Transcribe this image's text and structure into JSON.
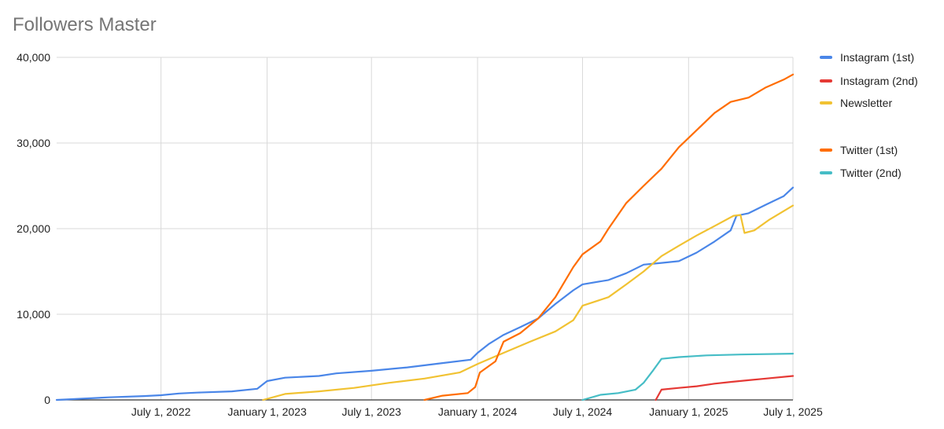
{
  "chart_data": {
    "type": "line",
    "title": "Followers Master",
    "xlabel": "",
    "ylabel": "",
    "x_range": [
      "2022-01-01",
      "2025-07-01"
    ],
    "ylim": [
      0,
      40000
    ],
    "y_ticks": [
      0,
      10000,
      20000,
      30000,
      40000
    ],
    "y_tick_labels": [
      "0",
      "10,000",
      "20,000",
      "30,000",
      "40,000"
    ],
    "x_ticks": [
      "2022-07-01",
      "2023-01-01",
      "2023-07-01",
      "2024-01-01",
      "2024-07-01",
      "2025-01-01",
      "2025-07-01"
    ],
    "x_tick_labels": [
      "July 1, 2022",
      "January 1, 2023",
      "July 1, 2023",
      "January 1, 2024",
      "July 1, 2024",
      "January 1, 2025",
      "July 1, 2025"
    ],
    "grid": true,
    "legend_position": "right",
    "series": [
      {
        "name": "Instagram (1st)",
        "color": "#4a86e8",
        "points": [
          [
            "2022-01-01",
            0
          ],
          [
            "2022-02-15",
            150
          ],
          [
            "2022-04-01",
            300
          ],
          [
            "2022-06-01",
            450
          ],
          [
            "2022-07-01",
            550
          ],
          [
            "2022-08-01",
            750
          ],
          [
            "2022-09-01",
            850
          ],
          [
            "2022-11-01",
            1000
          ],
          [
            "2022-12-15",
            1300
          ],
          [
            "2023-01-01",
            2200
          ],
          [
            "2023-02-01",
            2600
          ],
          [
            "2023-04-01",
            2800
          ],
          [
            "2023-05-01",
            3100
          ],
          [
            "2023-07-01",
            3400
          ],
          [
            "2023-09-01",
            3800
          ],
          [
            "2023-11-01",
            4300
          ],
          [
            "2023-12-20",
            4700
          ],
          [
            "2024-01-01",
            5500
          ],
          [
            "2024-01-20",
            6500
          ],
          [
            "2024-02-15",
            7600
          ],
          [
            "2024-03-15",
            8500
          ],
          [
            "2024-04-15",
            9500
          ],
          [
            "2024-05-15",
            11200
          ],
          [
            "2024-06-15",
            12800
          ],
          [
            "2024-07-01",
            13500
          ],
          [
            "2024-08-15",
            14000
          ],
          [
            "2024-09-15",
            14800
          ],
          [
            "2024-10-15",
            15800
          ],
          [
            "2024-11-15",
            16000
          ],
          [
            "2024-12-15",
            16200
          ],
          [
            "2025-01-15",
            17200
          ],
          [
            "2025-02-15",
            18500
          ],
          [
            "2025-03-15",
            19800
          ],
          [
            "2025-03-25",
            21500
          ],
          [
            "2025-04-15",
            21800
          ],
          [
            "2025-05-15",
            22800
          ],
          [
            "2025-06-15",
            23800
          ],
          [
            "2025-07-01",
            24800
          ]
        ]
      },
      {
        "name": "Instagram (2nd)",
        "color": "#e53935",
        "points": [
          [
            "2024-11-05",
            0
          ],
          [
            "2024-11-15",
            1200
          ],
          [
            "2024-12-15",
            1400
          ],
          [
            "2025-01-15",
            1600
          ],
          [
            "2025-02-15",
            1900
          ],
          [
            "2025-03-15",
            2100
          ],
          [
            "2025-04-15",
            2300
          ],
          [
            "2025-05-15",
            2500
          ],
          [
            "2025-07-01",
            2800
          ]
        ]
      },
      {
        "name": "Newsletter",
        "color": "#f1c232",
        "points": [
          [
            "2022-12-25",
            0
          ],
          [
            "2023-02-01",
            700
          ],
          [
            "2023-04-01",
            1000
          ],
          [
            "2023-06-01",
            1400
          ],
          [
            "2023-08-01",
            2000
          ],
          [
            "2023-10-01",
            2500
          ],
          [
            "2023-12-01",
            3200
          ],
          [
            "2024-01-01",
            4200
          ],
          [
            "2024-02-15",
            5500
          ],
          [
            "2024-04-01",
            6800
          ],
          [
            "2024-05-15",
            8000
          ],
          [
            "2024-06-15",
            9300
          ],
          [
            "2024-07-01",
            11000
          ],
          [
            "2024-08-15",
            12000
          ],
          [
            "2024-09-15",
            13500
          ],
          [
            "2024-10-15",
            15000
          ],
          [
            "2024-11-15",
            16800
          ],
          [
            "2024-12-15",
            18000
          ],
          [
            "2025-01-15",
            19200
          ],
          [
            "2025-02-15",
            20300
          ],
          [
            "2025-03-20",
            21500
          ],
          [
            "2025-04-01",
            21600
          ],
          [
            "2025-04-08",
            19500
          ],
          [
            "2025-04-25",
            19800
          ],
          [
            "2025-05-20",
            21000
          ],
          [
            "2025-07-01",
            22700
          ]
        ]
      },
      {
        "name": "Twitter (1st)",
        "color": "#ff6d01",
        "points": [
          [
            "2023-10-01",
            0
          ],
          [
            "2023-11-01",
            500
          ],
          [
            "2023-12-15",
            800
          ],
          [
            "2023-12-28",
            1500
          ],
          [
            "2024-01-05",
            3200
          ],
          [
            "2024-02-01",
            4500
          ],
          [
            "2024-02-15",
            6800
          ],
          [
            "2024-03-15",
            7800
          ],
          [
            "2024-04-15",
            9500
          ],
          [
            "2024-05-15",
            12000
          ],
          [
            "2024-06-15",
            15500
          ],
          [
            "2024-07-01",
            17000
          ],
          [
            "2024-08-01",
            18500
          ],
          [
            "2024-08-15",
            20000
          ],
          [
            "2024-09-15",
            23000
          ],
          [
            "2024-10-15",
            25000
          ],
          [
            "2024-11-15",
            27000
          ],
          [
            "2024-12-15",
            29500
          ],
          [
            "2025-01-15",
            31500
          ],
          [
            "2025-02-15",
            33500
          ],
          [
            "2025-03-15",
            34800
          ],
          [
            "2025-04-15",
            35300
          ],
          [
            "2025-05-15",
            36500
          ],
          [
            "2025-06-15",
            37400
          ],
          [
            "2025-07-01",
            38000
          ]
        ]
      },
      {
        "name": "Twitter (2nd)",
        "color": "#46bdc6",
        "points": [
          [
            "2024-07-01",
            0
          ],
          [
            "2024-08-01",
            600
          ],
          [
            "2024-09-01",
            800
          ],
          [
            "2024-10-01",
            1200
          ],
          [
            "2024-10-15",
            2000
          ],
          [
            "2024-11-01",
            3500
          ],
          [
            "2024-11-15",
            4800
          ],
          [
            "2024-12-15",
            5000
          ],
          [
            "2025-02-01",
            5200
          ],
          [
            "2025-04-01",
            5300
          ],
          [
            "2025-07-01",
            5400
          ]
        ]
      }
    ]
  }
}
